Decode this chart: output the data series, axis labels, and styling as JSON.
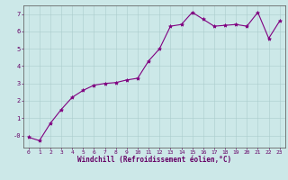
{
  "x_vals": [
    0,
    1,
    2,
    3,
    4,
    5,
    6,
    7,
    8,
    9,
    10,
    11,
    12,
    13,
    14,
    15,
    16,
    17,
    18,
    19,
    20,
    21,
    22,
    23
  ],
  "y_vals": [
    -0.1,
    -0.3,
    0.7,
    1.5,
    2.2,
    2.6,
    2.9,
    3.0,
    3.05,
    3.2,
    3.3,
    4.3,
    5.0,
    6.3,
    6.4,
    7.1,
    6.7,
    6.3,
    6.35,
    6.4,
    6.3,
    7.1,
    5.6,
    6.6
  ],
  "line_color": "#800080",
  "marker": "*",
  "bg_color": "#cce8e8",
  "grid_color": "#aacccc",
  "xlim": [
    -0.5,
    23.5
  ],
  "ylim": [
    -0.7,
    7.5
  ],
  "yticks": [
    0,
    1,
    2,
    3,
    4,
    5,
    6,
    7
  ],
  "ytick_labels": [
    "-0",
    "1",
    "2",
    "3",
    "4",
    "5",
    "6",
    "7"
  ],
  "xticks": [
    0,
    1,
    2,
    3,
    4,
    5,
    6,
    7,
    8,
    9,
    10,
    11,
    12,
    13,
    14,
    15,
    16,
    17,
    18,
    19,
    20,
    21,
    22,
    23
  ],
  "xlabel": "Windchill (Refroidissement éolien,°C)",
  "label_color": "#660066",
  "tick_color": "#660066",
  "spine_color": "#666666",
  "xlabel_fontsize": 5.5,
  "tick_fontsize": 4.5,
  "marker_size": 3,
  "line_width": 0.8
}
